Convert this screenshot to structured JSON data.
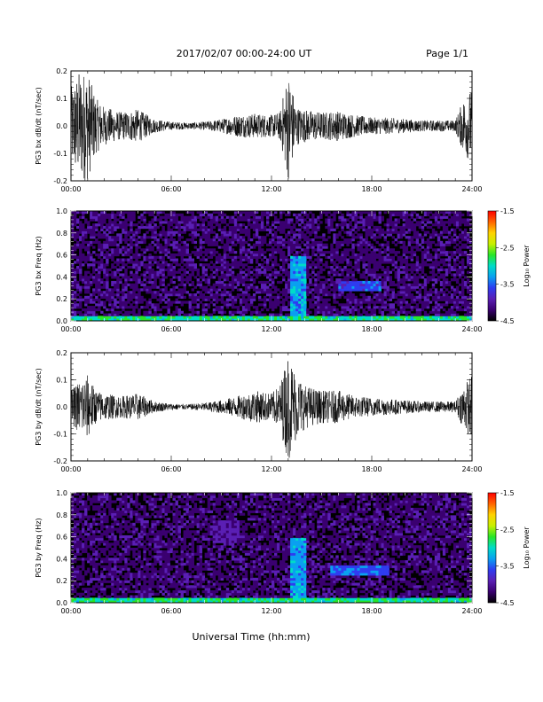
{
  "header": {
    "title": "2017/02/07  00:00-24:00 UT",
    "page": "Page 1/1"
  },
  "xlabel": "Universal Time (hh:mm)",
  "colorbar": {
    "label": "Log₁₀ Power",
    "ticks": [
      "-1.5",
      "-2.5",
      "-3.5",
      "-4.5"
    ],
    "range": [
      -4.5,
      -1.5
    ],
    "colors": [
      "#000000",
      "#3a0070",
      "#5a1fb4",
      "#2f3cf0",
      "#0aa0f0",
      "#00dcc8",
      "#28e628",
      "#c8f000",
      "#ffd200",
      "#ff6400",
      "#ff0000"
    ]
  },
  "chart_data": [
    {
      "type": "line",
      "ylabel": "PG3 bx dB/dt (nT/sec)",
      "xlim": [
        "00:00",
        "24:00"
      ],
      "ylim": [
        -0.2,
        0.2
      ],
      "x_ticks": [
        "00:00",
        "06:00",
        "12:00",
        "18:00",
        "24:00"
      ],
      "y_ticks": [
        "0.2",
        "0.1",
        "0.0",
        "-0.1",
        "-0.2"
      ],
      "envelope": {
        "hours": [
          0,
          0.5,
          1,
          1.5,
          2,
          3,
          4,
          5,
          6,
          7,
          8,
          9,
          10,
          11,
          12,
          12.5,
          13,
          13.5,
          14,
          15,
          16,
          17,
          18,
          19,
          20,
          21,
          22,
          23,
          23.5,
          24
        ],
        "amplitude": [
          0.14,
          0.2,
          0.2,
          0.1,
          0.07,
          0.05,
          0.06,
          0.025,
          0.015,
          0.012,
          0.015,
          0.025,
          0.04,
          0.045,
          0.04,
          0.05,
          0.2,
          0.07,
          0.06,
          0.05,
          0.055,
          0.04,
          0.03,
          0.03,
          0.025,
          0.02,
          0.02,
          0.02,
          0.1,
          0.14
        ]
      }
    },
    {
      "type": "heatmap",
      "ylabel": "PG3 bx Freq (Hz)",
      "xlim": [
        "00:00",
        "24:00"
      ],
      "ylim": [
        0.0,
        1.0
      ],
      "x_ticks": [
        "00:00",
        "06:00",
        "12:00",
        "18:00",
        "24:00"
      ],
      "y_ticks": [
        "1.0",
        "0.8",
        "0.6",
        "0.4",
        "0.2",
        "0.0"
      ],
      "zlabel": "Log10 Power",
      "zlim": [
        -4.5,
        -1.5
      ],
      "features": [
        {
          "desc": "low-frequency band",
          "freq_hz": [
            0.0,
            0.05
          ],
          "log_power": -3.0
        },
        {
          "desc": "broadband burst",
          "hours": [
            13.2,
            14.0
          ],
          "freq_hz": [
            0.0,
            0.6
          ],
          "log_power": -3.3
        },
        {
          "desc": "band",
          "hours": [
            16.0,
            18.5
          ],
          "freq_hz": [
            0.28,
            0.36
          ],
          "log_power": -3.6
        }
      ]
    },
    {
      "type": "line",
      "ylabel": "PG3 by dB/dt (nT/sec)",
      "xlim": [
        "00:00",
        "24:00"
      ],
      "ylim": [
        -0.2,
        0.2
      ],
      "x_ticks": [
        "00:00",
        "06:00",
        "12:00",
        "18:00",
        "24:00"
      ],
      "y_ticks": [
        "0.2",
        "0.1",
        "0.0",
        "-0.1",
        "-0.2"
      ],
      "envelope": {
        "hours": [
          0,
          0.5,
          1,
          1.5,
          2,
          3,
          4,
          5,
          6,
          7,
          8,
          9,
          10,
          11,
          12,
          12.5,
          13,
          13.5,
          14,
          15,
          16,
          17,
          18,
          19,
          20,
          21,
          22,
          23,
          23.5,
          24
        ],
        "amplitude": [
          0.06,
          0.1,
          0.12,
          0.06,
          0.05,
          0.04,
          0.05,
          0.02,
          0.012,
          0.01,
          0.015,
          0.025,
          0.04,
          0.06,
          0.05,
          0.08,
          0.2,
          0.12,
          0.08,
          0.06,
          0.06,
          0.04,
          0.035,
          0.03,
          0.025,
          0.02,
          0.02,
          0.02,
          0.08,
          0.12
        ]
      }
    },
    {
      "type": "heatmap",
      "ylabel": "PG3 by Freq (Hz)",
      "xlim": [
        "00:00",
        "24:00"
      ],
      "ylim": [
        0.0,
        1.0
      ],
      "x_ticks": [
        "00:00",
        "06:00",
        "12:00",
        "18:00",
        "24:00"
      ],
      "y_ticks": [
        "1.0",
        "0.8",
        "0.6",
        "0.4",
        "0.2",
        "0.0"
      ],
      "zlabel": "Log10 Power",
      "zlim": [
        -4.5,
        -1.5
      ],
      "features": [
        {
          "desc": "low-frequency band",
          "freq_hz": [
            0.0,
            0.05
          ],
          "log_power": -3.0
        },
        {
          "desc": "broadband burst",
          "hours": [
            13.2,
            14.0
          ],
          "freq_hz": [
            0.0,
            0.6
          ],
          "log_power": -3.3
        },
        {
          "desc": "band",
          "hours": [
            15.5,
            19.0
          ],
          "freq_hz": [
            0.25,
            0.35
          ],
          "log_power": -3.5
        },
        {
          "desc": "band",
          "hours": [
            8.5,
            10.0
          ],
          "freq_hz": [
            0.55,
            0.75
          ],
          "log_power": -4.0
        }
      ]
    }
  ]
}
